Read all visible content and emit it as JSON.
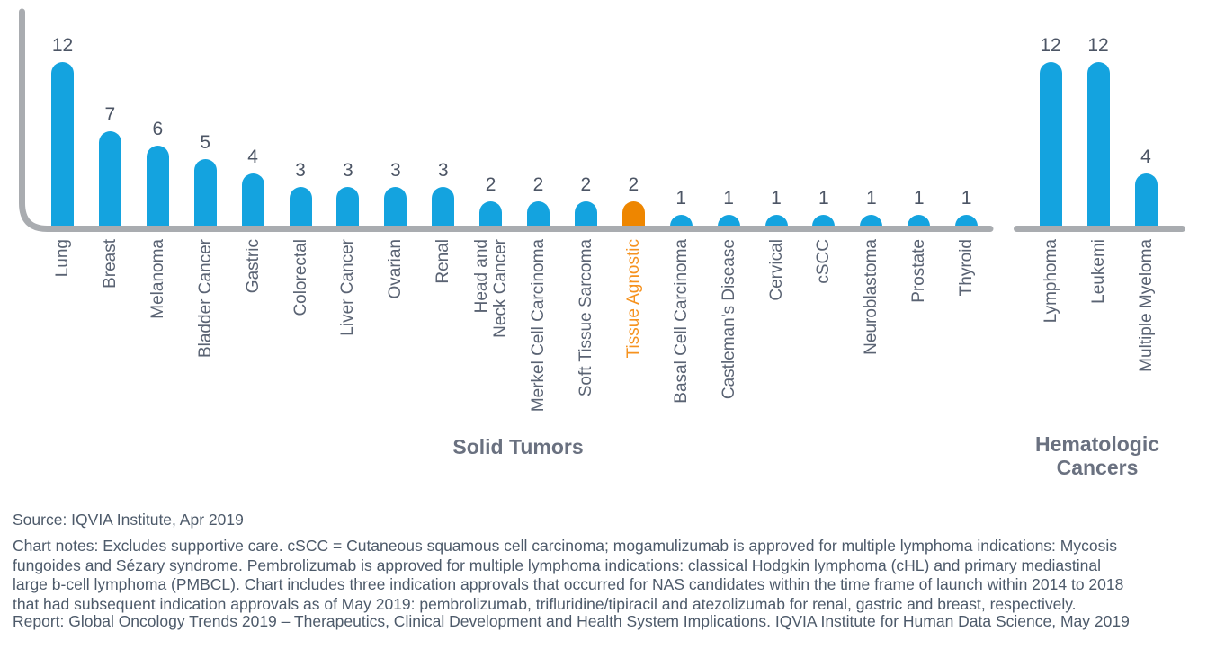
{
  "chart_data": {
    "type": "bar",
    "title": "",
    "xlabel": "",
    "ylabel": "",
    "ylim": [
      0,
      13
    ],
    "grid": false,
    "legend": null,
    "groups": [
      {
        "title": "Solid Tumors",
        "bars": [
          {
            "label": "Lung",
            "value": 12
          },
          {
            "label": "Breast",
            "value": 7
          },
          {
            "label": "Melanoma",
            "value": 6
          },
          {
            "label": "Bladder Cancer",
            "value": 5
          },
          {
            "label": "Gastric",
            "value": 4
          },
          {
            "label": "Colorectal",
            "value": 3
          },
          {
            "label": "Liver Cancer",
            "value": 3
          },
          {
            "label": "Ovarian",
            "value": 3
          },
          {
            "label": "Renal",
            "value": 3
          },
          {
            "label": "Head and\nNeck Cancer",
            "value": 2
          },
          {
            "label": "Merkel Cell Carcinoma",
            "value": 2
          },
          {
            "label": "Soft Tissue Sarcoma",
            "value": 2
          },
          {
            "label": "Tissue Agnostic",
            "value": 2,
            "highlight": true
          },
          {
            "label": "Basal Cell Carcinoma",
            "value": 1
          },
          {
            "label": "Castleman’s Disease",
            "value": 1
          },
          {
            "label": "Cervical",
            "value": 1
          },
          {
            "label": "cSCC",
            "value": 1
          },
          {
            "label": "Neuroblastoma",
            "value": 1
          },
          {
            "label": "Prostate",
            "value": 1
          },
          {
            "label": "Thyroid",
            "value": 1
          }
        ]
      },
      {
        "title": "Hematologic\nCancers",
        "bars": [
          {
            "label": "Lymphoma",
            "value": 12
          },
          {
            "label": "Leukemi",
            "value": 12
          },
          {
            "label": "Multiple Myeloma",
            "value": 4
          }
        ]
      }
    ],
    "colors": {
      "bar": "#14A3DF",
      "highlight_bar": "#EE8600",
      "highlight_label": "#F6921E",
      "axis": "#A9ACB0",
      "value_label": "#4C5565",
      "category_label": "#5A6373",
      "group_title": "#6A7180",
      "footer_text": "#4D5A6A"
    }
  },
  "footer": {
    "source": "Source: IQVIA Institute, Apr 2019",
    "notes": "Chart notes: Excludes supportive care. cSCC = Cutaneous squamous cell carcinoma; mogamulizumab is approved for multiple lymphoma indications: Mycosis\nfungoides and Sézary syndrome. Pembrolizumab is approved for multiple lymphoma indications: classical Hodgkin lymphoma (cHL) and primary mediastinal\nlarge b-cell lymphoma (PMBCL). Chart includes three indication approvals that occurred for NAS candidates within the time frame of launch within 2014 to 2018\nthat had subsequent indication approvals as of May 2019: pembrolizumab, trifluridine/tipiracil and atezolizumab for renal, gastric and breast, respectively.",
    "report": "Report: Global Oncology Trends 2019 – Therapeutics, Clinical Development and Health System Implications. IQVIA Institute for Human Data Science, May 2019"
  }
}
